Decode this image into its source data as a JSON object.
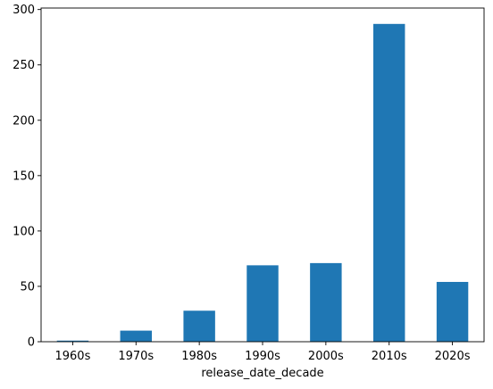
{
  "chart_data": {
    "type": "bar",
    "categories": [
      "1960s",
      "1970s",
      "1980s",
      "1990s",
      "2000s",
      "2010s",
      "2020s"
    ],
    "values": [
      1,
      10,
      28,
      69,
      71,
      287,
      54
    ],
    "title": "",
    "xlabel": "release_date_decade",
    "ylabel": "",
    "ylim": [
      0,
      301.35
    ],
    "yticks": [
      0,
      50,
      100,
      150,
      200,
      250,
      300
    ],
    "grid": false,
    "legend": "none",
    "bar_color": "#1f77b4",
    "axis_color": "#000000"
  }
}
